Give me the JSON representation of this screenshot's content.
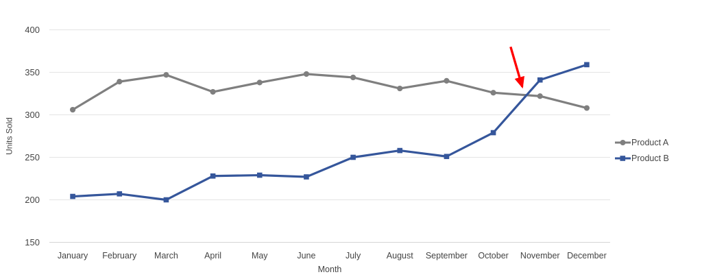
{
  "chart_data": {
    "type": "line",
    "title": "",
    "x": [
      "January",
      "February",
      "March",
      "April",
      "May",
      "June",
      "July",
      "August",
      "September",
      "October",
      "November",
      "December"
    ],
    "xlabel": "Month",
    "ylabel": "Units Sold",
    "ylim": [
      150,
      400
    ],
    "yticks": [
      150,
      200,
      250,
      300,
      350,
      400
    ],
    "grid": true,
    "legend_position": "right",
    "series": [
      {
        "name": "Product A",
        "color": "#7F7F7F",
        "marker": "circle",
        "values": [
          306,
          339,
          347,
          327,
          338,
          348,
          344,
          331,
          340,
          326,
          322,
          308
        ]
      },
      {
        "name": "Product B",
        "color": "#35569B",
        "marker": "square",
        "values": [
          204,
          207,
          200,
          228,
          229,
          227,
          250,
          258,
          251,
          279,
          341,
          359
        ]
      }
    ],
    "annotation": {
      "shape": "arrow",
      "color": "#FF0000",
      "description": "red arrow pointing at the crossover of the two lines near November",
      "tail": {
        "month_index": 9.37,
        "value": 380
      },
      "tip": {
        "month_index": 9.62,
        "value": 333
      }
    }
  }
}
